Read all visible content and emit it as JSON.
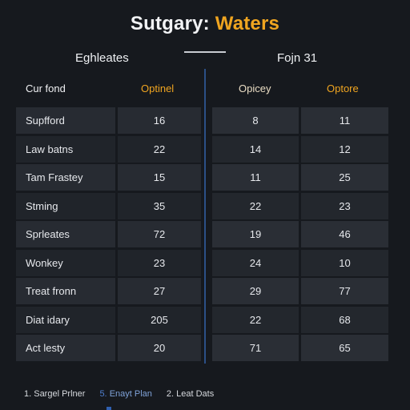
{
  "title": {
    "part1": "Sutgary:",
    "part2": "Waters"
  },
  "headers": {
    "left": "Eghleates",
    "right": "Fojn 31"
  },
  "left_table": {
    "col_name": "Cur fond",
    "col_value": "Optinel",
    "rows": [
      {
        "name": "Supfford",
        "value": "16"
      },
      {
        "name": "Law batns",
        "value": "22"
      },
      {
        "name": "Tam Frastey",
        "value": "15"
      },
      {
        "name": "Stming",
        "value": "35"
      },
      {
        "name": "Sprleates",
        "value": "72"
      },
      {
        "name": "Wonkey",
        "value": "23"
      },
      {
        "name": "Treat fronn",
        "value": "27"
      },
      {
        "name": "Diat idary",
        "value": "205"
      },
      {
        "name": "Act lesty",
        "value": "20"
      }
    ]
  },
  "right_table": {
    "col_a": "Opicey",
    "col_b": "Optore",
    "rows": [
      {
        "a": "8",
        "b": "11"
      },
      {
        "a": "14",
        "b": "12"
      },
      {
        "a": "11",
        "b": "25"
      },
      {
        "a": "22",
        "b": "23"
      },
      {
        "a": "19",
        "b": "46"
      },
      {
        "a": "24",
        "b": "10"
      },
      {
        "a": "29",
        "b": "77"
      },
      {
        "a": "22",
        "b": "68"
      },
      {
        "a": "71",
        "b": "65"
      }
    ]
  },
  "footer": {
    "item1": "1. Sargel Prlner",
    "item2_num": "5.",
    "item2_text": "Enayt Plan",
    "item3": "2. Leat Dats"
  },
  "colors": {
    "background": "#16191e",
    "accent": "#f0a520",
    "divider": "#2b4f86"
  }
}
